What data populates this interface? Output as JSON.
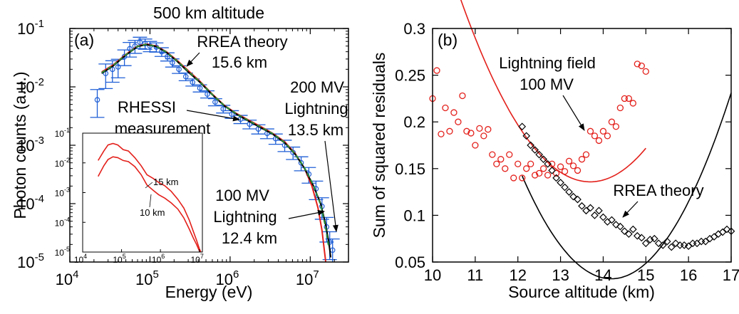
{
  "chart_data": [
    {
      "type": "line",
      "panel_label": "(a)",
      "title": "500 km altitude",
      "xlabel": "Energy (eV)",
      "ylabel": "Photon counts (a.u.)",
      "xscale": "log",
      "yscale": "log",
      "xlim": [
        10000,
        30000000
      ],
      "ylim": [
        1e-05,
        0.1
      ],
      "x_ticks": [
        {
          "value": 10000,
          "base": "10",
          "exp": "4"
        },
        {
          "value": 100000,
          "base": "10",
          "exp": "5"
        },
        {
          "value": 1000000,
          "base": "10",
          "exp": "6"
        },
        {
          "value": 10000000,
          "base": "10",
          "exp": "7"
        }
      ],
      "y_ticks": [
        {
          "value": 1e-05,
          "base": "10",
          "exp": "-5"
        },
        {
          "value": 0.0001,
          "base": "10",
          "exp": "-4"
        },
        {
          "value": 0.001,
          "base": "10",
          "exp": "-3"
        },
        {
          "value": 0.01,
          "base": "10",
          "exp": "-2"
        },
        {
          "value": 0.1,
          "base": "10",
          "exp": "-1"
        }
      ],
      "series": [
        {
          "color": "#1f5fd6",
          "style": "points-with-errorbars",
          "x": [
            22000,
            28000,
            34000,
            40000,
            48000,
            56000,
            65000,
            75000,
            87000,
            100000,
            120000,
            140000,
            165000,
            190000,
            230000,
            280000,
            340000,
            420000,
            520000,
            650000,
            820000,
            1050000,
            1350000,
            1750000,
            2250000,
            2900000,
            3700000,
            4800000,
            6100000,
            7700000,
            9600000,
            11800000,
            14000000,
            16000000,
            17500000,
            19000000
          ],
          "y": [
            0.006,
            0.017,
            0.02,
            0.022,
            0.033,
            0.045,
            0.05,
            0.058,
            0.055,
            0.05,
            0.048,
            0.04,
            0.033,
            0.026,
            0.02,
            0.015,
            0.012,
            0.0095,
            0.0075,
            0.0055,
            0.0042,
            0.0034,
            0.0028,
            0.0023,
            0.0019,
            0.0016,
            0.0013,
            0.001,
            0.00075,
            0.0005,
            0.00032,
            0.00018,
            9e-05,
            4e-05,
            2.2e-05,
            1.6e-05
          ],
          "err_frac": [
            0.5,
            0.45,
            0.4,
            0.35,
            0.3,
            0.28,
            0.25,
            0.22,
            0.2,
            0.2,
            0.18,
            0.17,
            0.16,
            0.16,
            0.15,
            0.15,
            0.14,
            0.14,
            0.14,
            0.14,
            0.15,
            0.15,
            0.16,
            0.17,
            0.18,
            0.19,
            0.2,
            0.22,
            0.24,
            0.27,
            0.3,
            0.35,
            0.4,
            0.45,
            0.5,
            0.55
          ]
        },
        {
          "color": "#e3201b",
          "style": "line",
          "x": [
            25000,
            35000,
            50000,
            70000,
            90000,
            120000,
            160000,
            220000,
            300000,
            420000,
            600000,
            850000,
            1200000,
            1700000,
            2400000,
            3400000,
            4800000,
            6500000,
            8500000,
            10500000,
            12500000,
            14000000,
            15000000,
            15600000
          ],
          "y": [
            0.018,
            0.024,
            0.036,
            0.05,
            0.054,
            0.05,
            0.04,
            0.028,
            0.019,
            0.0125,
            0.0075,
            0.0048,
            0.0035,
            0.0027,
            0.0021,
            0.0016,
            0.00115,
            0.00072,
            0.0004,
            0.0002,
            8.5e-05,
            3.5e-05,
            1.6e-05,
            1e-05
          ]
        },
        {
          "color": "#000000",
          "style": "line",
          "x": [
            25000,
            35000,
            50000,
            70000,
            90000,
            120000,
            160000,
            220000,
            300000,
            420000,
            600000,
            850000,
            1200000,
            1700000,
            2400000,
            3400000,
            4800000,
            6500000,
            8500000,
            11000000,
            13500000,
            15500000,
            17000000,
            18000000
          ],
          "y": [
            0.017,
            0.023,
            0.035,
            0.049,
            0.053,
            0.049,
            0.039,
            0.027,
            0.018,
            0.012,
            0.0073,
            0.0047,
            0.0034,
            0.0026,
            0.002,
            0.00155,
            0.0011,
            0.0007,
            0.0004,
            0.0002,
            0.0001,
            4.5e-05,
            2.2e-05,
            1.2e-05
          ]
        },
        {
          "color": "#2a8f3a",
          "style": "dashed-line",
          "x": [
            25000,
            35000,
            50000,
            70000,
            90000,
            120000,
            160000,
            220000,
            300000,
            420000,
            600000,
            850000,
            1200000,
            1700000,
            2400000,
            3400000,
            4800000,
            6500000,
            8500000,
            11000000,
            13500000,
            15500000,
            17000000
          ],
          "y": [
            0.0175,
            0.0235,
            0.0355,
            0.0495,
            0.0535,
            0.0495,
            0.0395,
            0.0275,
            0.0185,
            0.0122,
            0.0074,
            0.00475,
            0.00345,
            0.00265,
            0.00205,
            0.00158,
            0.00112,
            0.00071,
            0.00041,
            0.000205,
            9.5e-05,
            4e-05,
            1.8e-05
          ]
        }
      ],
      "annotations": [
        {
          "lines": [
            "RREA theory",
            "15.6 km"
          ]
        },
        {
          "lines": [
            "RHESSI",
            "measurement"
          ]
        },
        {
          "lines": [
            "200 MV",
            "Lightning",
            "13.5 km"
          ]
        },
        {
          "lines": [
            "100 MV",
            "Lightning",
            "12.4 km"
          ]
        }
      ],
      "inset": {
        "xscale": "log",
        "yscale": "log",
        "xlim": [
          10000,
          12000000
        ],
        "ylim": [
          1e-05,
          0.1
        ],
        "x_ticks": [
          {
            "value": 10000,
            "base": "10",
            "exp": "4"
          },
          {
            "value": 100000,
            "base": "10",
            "exp": "5"
          },
          {
            "value": 1000000,
            "base": "10",
            "exp": "6"
          },
          {
            "value": 10000000,
            "base": "10",
            "exp": "7"
          }
        ],
        "y_ticks": [
          {
            "value": 1e-05,
            "base": "10",
            "exp": "-5"
          },
          {
            "value": 0.0001,
            "base": "10",
            "exp": "-4"
          },
          {
            "value": 0.001,
            "base": "10",
            "exp": "-3"
          },
          {
            "value": 0.01,
            "base": "10",
            "exp": "-2"
          },
          {
            "value": 0.1,
            "base": "10",
            "exp": "-1"
          }
        ],
        "series": [
          {
            "name": "15 km",
            "color": "#e3201b",
            "x": [
              25000,
              35000,
              45000,
              60000,
              80000,
              110000,
              150000,
              220000,
              320000,
              450000,
              650000,
              900000,
              1300000,
              1900000,
              2800000,
              4000000,
              5500000,
              7000000,
              8500000,
              10000000,
              11000000
            ],
            "y": [
              0.012,
              0.025,
              0.04,
              0.045,
              0.04,
              0.028,
              0.025,
              0.015,
              0.008,
              0.004,
              0.003,
              0.0022,
              0.0017,
              0.0011,
              0.0006,
              0.0003,
              0.00012,
              5e-05,
              2.5e-05,
              1.3e-05,
              1e-05
            ]
          },
          {
            "name": "10 km",
            "color": "#e3201b",
            "x": [
              25000,
              35000,
              45000,
              60000,
              80000,
              110000,
              150000,
              220000,
              320000,
              450000,
              650000,
              900000,
              1300000,
              1900000,
              2800000,
              4000000,
              5500000,
              7000000,
              8500000,
              10000000,
              11000000
            ],
            "y": [
              0.0035,
              0.008,
              0.013,
              0.016,
              0.015,
              0.012,
              0.011,
              0.0075,
              0.004,
              0.0018,
              0.0012,
              0.00085,
              0.00065,
              0.00045,
              0.00028,
              0.00014,
              6e-05,
              3e-05,
              1.8e-05,
              1.1e-05,
              1e-05
            ]
          }
        ]
      }
    },
    {
      "type": "scatter",
      "panel_label": "(b)",
      "xlabel": "Source altitude (km)",
      "ylabel": "Sum of squared residuals",
      "xlim": [
        10,
        17
      ],
      "ylim": [
        0.05,
        0.3
      ],
      "x_ticks": [
        "10",
        "11",
        "12",
        "13",
        "14",
        "15",
        "16",
        "17"
      ],
      "y_ticks": [
        "0.05",
        "0.1",
        "0.15",
        "0.2",
        "0.25",
        "0.3"
      ],
      "series": [
        {
          "color": "#e3201b",
          "marker": "circle",
          "x": [
            10.0,
            10.1,
            10.2,
            10.3,
            10.4,
            10.5,
            10.6,
            10.7,
            10.8,
            10.9,
            11.0,
            11.1,
            11.2,
            11.3,
            11.4,
            11.5,
            11.6,
            11.7,
            11.8,
            11.9,
            12.0,
            12.1,
            12.2,
            12.3,
            12.4,
            12.5,
            12.6,
            12.7,
            12.8,
            12.9,
            13.0,
            13.1,
            13.2,
            13.3,
            13.4,
            13.5,
            13.6,
            13.7,
            13.8,
            13.9,
            14.0,
            14.1,
            14.2,
            14.3,
            14.4,
            14.5,
            14.6,
            14.7,
            14.8,
            14.9,
            15.0
          ],
          "y": [
            0.225,
            0.255,
            0.187,
            0.215,
            0.19,
            0.21,
            0.2,
            0.228,
            0.19,
            0.188,
            0.175,
            0.193,
            0.185,
            0.192,
            0.165,
            0.155,
            0.16,
            0.15,
            0.165,
            0.14,
            0.155,
            0.14,
            0.15,
            0.155,
            0.143,
            0.145,
            0.15,
            0.143,
            0.155,
            0.145,
            0.152,
            0.147,
            0.158,
            0.153,
            0.148,
            0.16,
            0.165,
            0.19,
            0.185,
            0.18,
            0.19,
            0.185,
            0.2,
            0.195,
            0.215,
            0.225,
            0.225,
            0.22,
            0.262,
            0.26,
            0.254
          ]
        },
        {
          "color": "#000000",
          "marker": "diamond",
          "x": [
            12.1,
            12.2,
            12.3,
            12.4,
            12.5,
            12.6,
            12.7,
            12.8,
            12.9,
            13.0,
            13.1,
            13.2,
            13.3,
            13.4,
            13.5,
            13.6,
            13.7,
            13.8,
            13.9,
            14.0,
            14.1,
            14.2,
            14.3,
            14.4,
            14.5,
            14.6,
            14.7,
            14.8,
            14.9,
            15.0,
            15.1,
            15.2,
            15.3,
            15.4,
            15.5,
            15.6,
            15.7,
            15.8,
            15.9,
            16.0,
            16.1,
            16.2,
            16.3,
            16.4,
            16.5,
            16.6,
            16.7,
            16.8,
            16.9,
            17.0
          ],
          "y": [
            0.195,
            0.185,
            0.175,
            0.17,
            0.165,
            0.16,
            0.155,
            0.148,
            0.14,
            0.135,
            0.13,
            0.125,
            0.12,
            0.117,
            0.11,
            0.105,
            0.108,
            0.1,
            0.105,
            0.098,
            0.093,
            0.095,
            0.09,
            0.088,
            0.083,
            0.08,
            0.085,
            0.078,
            0.076,
            0.07,
            0.074,
            0.075,
            0.07,
            0.068,
            0.072,
            0.066,
            0.07,
            0.068,
            0.068,
            0.067,
            0.07,
            0.07,
            0.072,
            0.072,
            0.075,
            0.077,
            0.08,
            0.082,
            0.085,
            0.083
          ]
        }
      ],
      "fits": [
        {
          "color": "#e3201b",
          "coef": [
            0.1461,
            -0.0295,
            0.02118
          ],
          "x_range": [
            10,
            15
          ]
        },
        {
          "color": "#000000",
          "coef": [
            0.0678,
            -0.06,
            0.0252
          ],
          "x_range": [
            12.1,
            17
          ]
        }
      ],
      "annotations": [
        {
          "lines": [
            "Lightning field",
            "100 MV"
          ]
        },
        {
          "lines": [
            "RREA theory"
          ]
        }
      ]
    }
  ]
}
